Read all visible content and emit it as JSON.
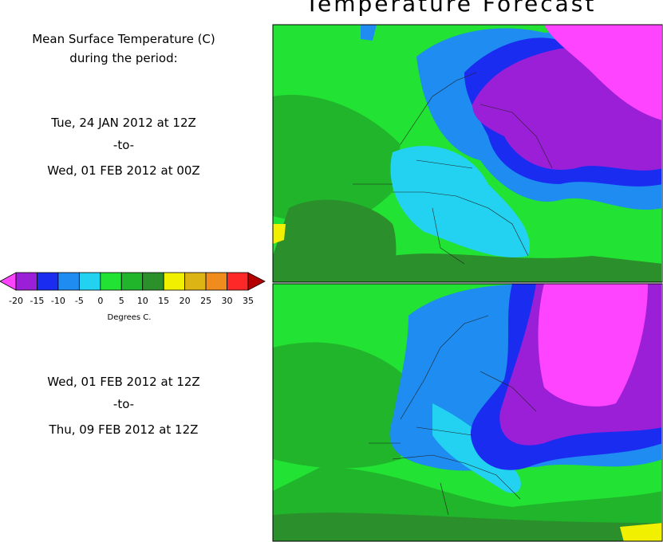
{
  "title": "Temperature Forecast",
  "caption": [
    "Mean Surface Temperature (C)",
    "during the period:"
  ],
  "periods": [
    {
      "start": "Tue, 24 JAN 2012 at 12Z",
      "separator": "-to-",
      "end": "Wed, 01 FEB 2012 at 00Z"
    },
    {
      "start": "Wed, 01 FEB 2012 at 12Z",
      "separator": "-to-",
      "end": "Thu, 09 FEB 2012 at 12Z"
    }
  ],
  "legend": {
    "ticks": [
      -20,
      -15,
      -10,
      -5,
      0,
      5,
      10,
      15,
      20,
      25,
      30,
      35
    ],
    "colors": [
      "#ff44ff",
      "#9b1fd6",
      "#1a2cf0",
      "#1e8cf0",
      "#22d2f0",
      "#22e234",
      "#20b52a",
      "#2b8f2b",
      "#f0f000",
      "#dcb414",
      "#f08c1e",
      "#ff2828",
      "#b40000"
    ],
    "label": "Degrees C."
  }
}
